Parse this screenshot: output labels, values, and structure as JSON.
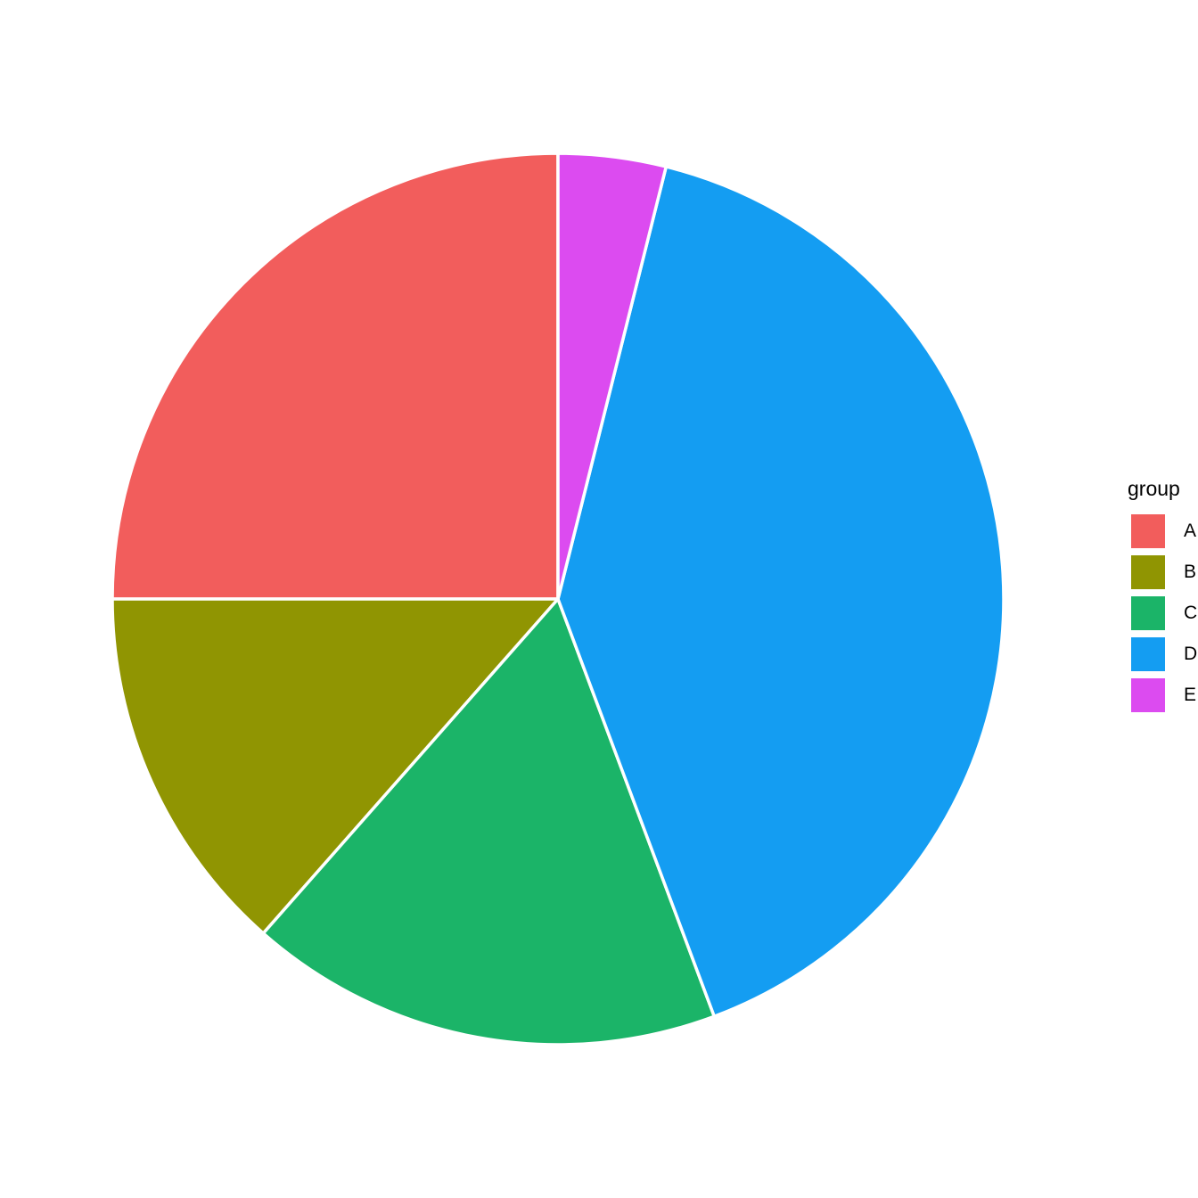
{
  "chart_data": {
    "type": "pie",
    "legend_title": "group",
    "categories": [
      "A",
      "B",
      "C",
      "D",
      "E"
    ],
    "values": [
      25,
      13.5,
      17.2,
      40.4,
      3.9
    ],
    "colors": [
      "#F25D5C",
      "#909502",
      "#1BB468",
      "#149DF2",
      "#DC4BF0"
    ],
    "slice_stroke_color": "#FFFFFF",
    "legend_position": "right",
    "start_angle": "top",
    "direction": "counterclockwise",
    "background_color": "#FFFFFF",
    "text_color": "#000000"
  }
}
